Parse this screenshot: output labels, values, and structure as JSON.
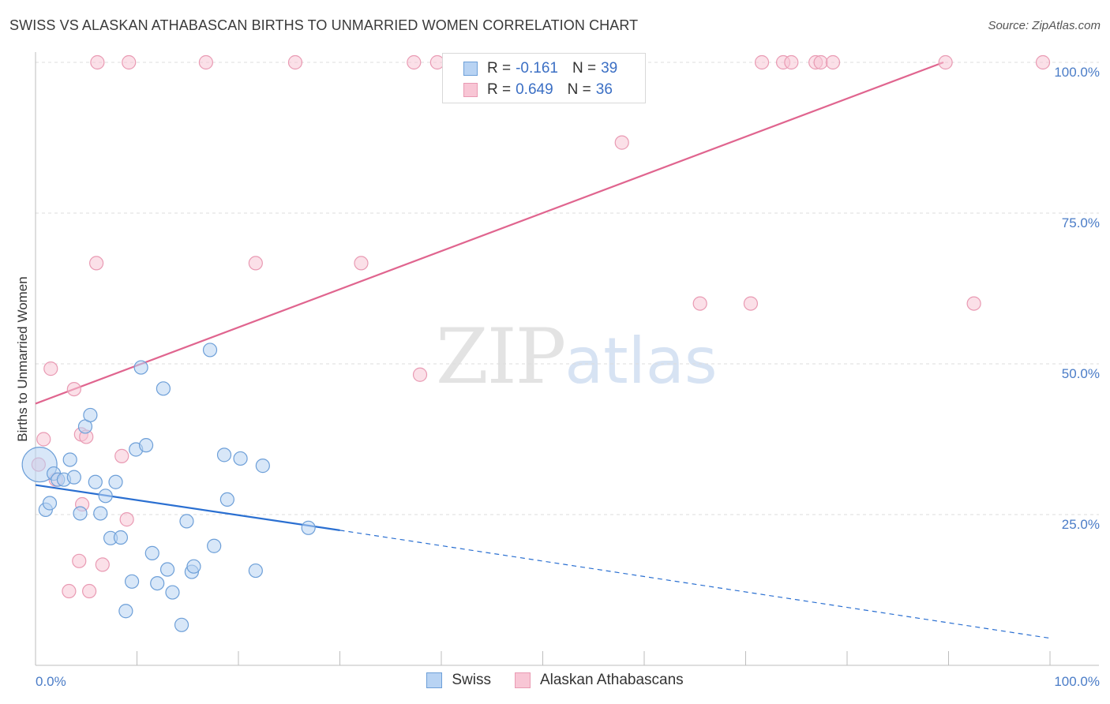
{
  "title": "SWISS VS ALASKAN ATHABASCAN BIRTHS TO UNMARRIED WOMEN CORRELATION CHART",
  "source": "Source: ZipAtlas.com",
  "watermark": {
    "zip": "ZIP",
    "atlas": "atlas"
  },
  "legend": {
    "swiss": {
      "r_label": "R =",
      "r_value": "-0.161",
      "n_label": "N =",
      "n_value": "39"
    },
    "alaskan": {
      "r_label": "R =",
      "r_value": "0.649",
      "n_label": "N =",
      "n_value": "36"
    }
  },
  "bottom_legend": {
    "swiss": "Swiss",
    "alaskan": "Alaskan Athabascans"
  },
  "colors": {
    "swiss_fill": "#b8d3f3",
    "swiss_stroke": "#6d9fd8",
    "swiss_line": "#2a6fd1",
    "alaskan_fill": "#f8c6d5",
    "alaskan_stroke": "#e99ab3",
    "alaskan_line": "#e0658f",
    "grid": "#dcdcdc",
    "tick_text": "#4a7cc7"
  },
  "chart_data": {
    "type": "scatter",
    "title": "SWISS VS ALASKAN ATHABASCAN BIRTHS TO UNMARRIED WOMEN CORRELATION CHART",
    "xlabel": "",
    "ylabel": "Births to Unmarried Women",
    "xlim": [
      0,
      100
    ],
    "ylim": [
      0,
      100
    ],
    "x_tick_labels": [
      "0.0%",
      "100.0%"
    ],
    "y_tick_labels": [
      "25.0%",
      "50.0%",
      "75.0%",
      "100.0%"
    ],
    "y_ticks": [
      25,
      50,
      75,
      100
    ],
    "series": [
      {
        "name": "Swiss",
        "r": -0.161,
        "n": 39,
        "trend": {
          "x0": 0,
          "y0": 29.9,
          "x1": 30,
          "y1": 22.4,
          "dashed_to_x": 100,
          "dashed_to_y": 4.5
        },
        "points": [
          {
            "x": 0.4,
            "y": 33.3,
            "big": true
          },
          {
            "x": 1.0,
            "y": 25.8
          },
          {
            "x": 1.4,
            "y": 26.9
          },
          {
            "x": 1.8,
            "y": 31.8
          },
          {
            "x": 2.2,
            "y": 30.8
          },
          {
            "x": 2.8,
            "y": 30.8
          },
          {
            "x": 3.4,
            "y": 34.1
          },
          {
            "x": 3.8,
            "y": 31.2
          },
          {
            "x": 4.4,
            "y": 25.2
          },
          {
            "x": 4.9,
            "y": 39.6
          },
          {
            "x": 5.4,
            "y": 41.5
          },
          {
            "x": 5.9,
            "y": 30.4
          },
          {
            "x": 6.4,
            "y": 25.2
          },
          {
            "x": 6.9,
            "y": 28.1
          },
          {
            "x": 7.4,
            "y": 21.1
          },
          {
            "x": 7.9,
            "y": 30.4
          },
          {
            "x": 8.4,
            "y": 21.2
          },
          {
            "x": 8.9,
            "y": 9.0
          },
          {
            "x": 9.5,
            "y": 13.9
          },
          {
            "x": 9.9,
            "y": 35.8
          },
          {
            "x": 10.4,
            "y": 49.4
          },
          {
            "x": 10.9,
            "y": 36.5
          },
          {
            "x": 11.5,
            "y": 18.6
          },
          {
            "x": 12.0,
            "y": 13.6
          },
          {
            "x": 12.6,
            "y": 45.9
          },
          {
            "x": 13.0,
            "y": 15.9
          },
          {
            "x": 13.5,
            "y": 12.1
          },
          {
            "x": 14.4,
            "y": 6.7
          },
          {
            "x": 14.9,
            "y": 23.9
          },
          {
            "x": 15.4,
            "y": 15.5
          },
          {
            "x": 15.6,
            "y": 16.4
          },
          {
            "x": 17.2,
            "y": 52.3
          },
          {
            "x": 17.6,
            "y": 19.8
          },
          {
            "x": 18.6,
            "y": 34.9
          },
          {
            "x": 18.9,
            "y": 27.5
          },
          {
            "x": 20.2,
            "y": 34.3
          },
          {
            "x": 21.7,
            "y": 15.7
          },
          {
            "x": 22.4,
            "y": 33.1
          },
          {
            "x": 26.9,
            "y": 22.8
          }
        ]
      },
      {
        "name": "Alaskan Athabascans",
        "r": 0.649,
        "n": 36,
        "trend": {
          "x0": 0,
          "y0": 43.4,
          "x1": 89.5,
          "y1": 100
        },
        "points": [
          {
            "x": 0.3,
            "y": 33.3
          },
          {
            "x": 0.8,
            "y": 37.5
          },
          {
            "x": 1.5,
            "y": 49.2
          },
          {
            "x": 2.0,
            "y": 30.8
          },
          {
            "x": 3.3,
            "y": 12.3
          },
          {
            "x": 3.8,
            "y": 45.8
          },
          {
            "x": 4.3,
            "y": 17.3
          },
          {
            "x": 4.6,
            "y": 26.7
          },
          {
            "x": 4.5,
            "y": 38.3
          },
          {
            "x": 5.0,
            "y": 37.9
          },
          {
            "x": 5.3,
            "y": 12.3
          },
          {
            "x": 6.6,
            "y": 16.7
          },
          {
            "x": 6.1,
            "y": 100
          },
          {
            "x": 6.0,
            "y": 66.7
          },
          {
            "x": 8.5,
            "y": 34.7
          },
          {
            "x": 9.0,
            "y": 24.2
          },
          {
            "x": 9.2,
            "y": 100
          },
          {
            "x": 16.8,
            "y": 100
          },
          {
            "x": 21.7,
            "y": 66.7
          },
          {
            "x": 25.6,
            "y": 100
          },
          {
            "x": 32.1,
            "y": 66.7
          },
          {
            "x": 37.3,
            "y": 100
          },
          {
            "x": 37.9,
            "y": 48.2
          },
          {
            "x": 39.6,
            "y": 100
          },
          {
            "x": 57.8,
            "y": 86.7
          },
          {
            "x": 65.5,
            "y": 60.0
          },
          {
            "x": 70.5,
            "y": 60.0
          },
          {
            "x": 71.6,
            "y": 100
          },
          {
            "x": 73.7,
            "y": 100
          },
          {
            "x": 74.5,
            "y": 100
          },
          {
            "x": 76.9,
            "y": 100
          },
          {
            "x": 77.4,
            "y": 100
          },
          {
            "x": 78.6,
            "y": 100
          },
          {
            "x": 89.7,
            "y": 100
          },
          {
            "x": 92.5,
            "y": 60.0
          },
          {
            "x": 99.3,
            "y": 100
          }
        ]
      }
    ]
  }
}
